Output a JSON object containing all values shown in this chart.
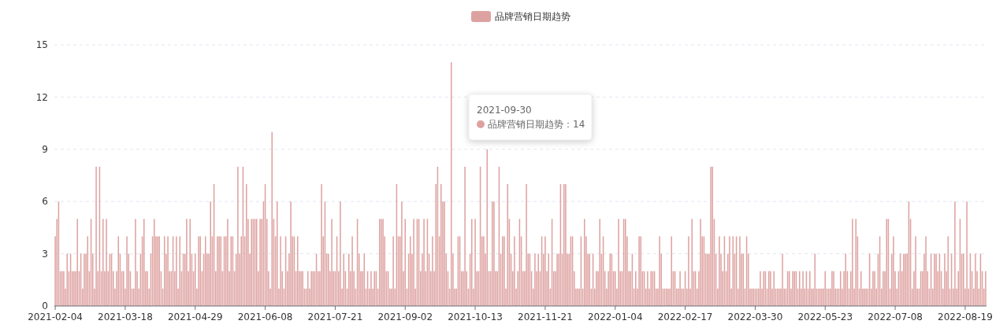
{
  "chart_data": {
    "type": "bar",
    "categories": [
      "2021-02-04",
      null,
      null,
      null,
      null,
      null,
      null,
      null,
      null,
      null,
      null,
      null,
      null,
      null,
      null,
      null,
      null,
      null,
      null,
      null,
      null,
      null,
      null,
      null,
      null,
      null,
      null,
      null,
      null,
      null,
      null,
      null,
      null,
      null,
      null,
      null,
      null,
      null,
      null,
      null,
      null,
      "2021-03-18",
      null,
      null,
      null,
      null,
      null,
      null,
      null,
      null,
      null,
      null,
      null,
      null,
      null,
      null,
      null,
      null,
      null,
      null,
      null,
      null,
      null,
      null,
      null,
      null,
      null,
      null,
      null,
      null,
      null,
      null,
      null,
      null,
      null,
      null,
      null,
      null,
      null,
      null,
      null,
      null,
      "2021-04-29",
      null,
      null,
      null,
      null,
      null,
      null,
      null,
      null,
      null,
      null,
      null,
      null,
      null,
      null,
      null,
      null,
      null,
      null,
      null,
      null,
      null,
      null,
      null,
      null,
      null,
      null,
      null,
      null,
      null,
      null,
      null,
      null,
      null,
      null,
      null,
      null,
      null,
      null,
      null,
      null,
      "2021-06-08",
      null,
      null,
      null,
      null,
      null,
      null,
      null,
      null,
      null,
      null,
      null,
      null,
      null,
      null,
      null,
      null,
      null,
      null,
      null,
      null,
      null,
      null,
      null,
      null,
      null,
      null,
      null,
      null,
      null,
      null,
      null,
      null,
      null,
      null,
      null,
      null,
      null,
      null,
      null,
      null,
      "2021-07-21",
      null,
      null,
      null,
      null,
      null,
      null,
      null,
      null,
      null,
      null,
      null,
      null,
      null,
      null,
      null,
      null,
      null,
      null,
      null,
      null,
      null,
      null,
      null,
      null,
      null,
      null,
      null,
      null,
      null,
      null,
      null,
      null,
      null,
      null,
      null,
      null,
      null,
      null,
      null,
      null,
      "2021-09-02",
      null,
      null,
      null,
      null,
      null,
      null,
      null,
      null,
      null,
      null,
      null,
      null,
      null,
      null,
      null,
      null,
      null,
      null,
      null,
      null,
      null,
      null,
      null,
      null,
      null,
      null,
      null,
      null,
      null,
      null,
      null,
      null,
      null,
      null,
      null,
      null,
      null,
      null,
      null,
      null,
      "2021-10-13",
      null,
      null,
      null,
      null,
      null,
      null,
      null,
      null,
      null,
      null,
      null,
      null,
      null,
      null,
      null,
      null,
      null,
      null,
      null,
      null,
      null,
      null,
      null,
      null,
      null,
      null,
      null,
      null,
      null,
      null,
      null,
      null,
      null,
      null,
      null,
      null,
      null,
      null,
      null,
      null,
      "2021-11-21",
      null,
      null,
      null,
      null,
      null,
      null,
      null,
      null,
      null,
      null,
      null,
      null,
      null,
      null,
      null,
      null,
      null,
      null,
      null,
      null,
      null,
      null,
      null,
      null,
      null,
      null,
      null,
      null,
      null,
      null,
      null,
      null,
      null,
      null,
      null,
      null,
      null,
      null,
      null,
      null,
      "2022-01-04",
      null,
      null,
      null,
      null,
      null,
      null,
      null,
      null,
      null,
      null,
      null,
      null,
      null,
      null,
      null,
      null,
      null,
      null,
      null,
      null,
      null,
      null,
      null,
      null,
      null,
      null,
      null,
      null,
      null,
      null,
      null,
      null,
      null,
      null,
      null,
      null,
      null,
      null,
      null,
      null,
      "2022-02-17",
      null,
      null,
      null,
      null,
      null,
      null,
      null,
      null,
      null,
      null,
      null,
      null,
      null,
      null,
      null,
      null,
      null,
      null,
      null,
      null,
      null,
      null,
      null,
      null,
      null,
      null,
      null,
      null,
      null,
      null,
      null,
      null,
      null,
      null,
      null,
      null,
      null,
      null,
      null,
      null,
      "2022-03-30",
      null,
      null,
      null,
      null,
      null,
      null,
      null,
      null,
      null,
      null,
      null,
      null,
      null,
      null,
      null,
      null,
      null,
      null,
      null,
      null,
      null,
      null,
      null,
      null,
      null,
      null,
      null,
      null,
      null,
      null,
      null,
      null,
      null,
      null,
      null,
      null,
      null,
      null,
      null,
      null,
      "2022-05-23",
      null,
      null,
      null,
      null,
      null,
      null,
      null,
      null,
      null,
      null,
      null,
      null,
      null,
      null,
      null,
      null,
      null,
      null,
      null,
      null,
      null,
      null,
      null,
      null,
      null,
      null,
      null,
      null,
      null,
      null,
      null,
      null,
      null,
      null,
      null,
      null,
      null,
      null,
      null,
      null,
      "2022-07-08",
      null,
      null,
      null,
      null,
      null,
      null,
      null,
      null,
      null,
      null,
      null,
      null,
      null,
      null,
      null,
      null,
      null,
      null,
      null,
      null,
      null,
      null,
      null,
      null,
      null,
      null,
      null,
      null,
      null,
      null,
      null,
      null,
      null,
      null,
      null,
      null,
      null,
      null,
      null,
      null,
      "2022-08-19",
      null,
      null,
      null,
      null,
      null,
      null,
      null,
      null,
      null,
      null,
      null,
      null
    ],
    "series": [
      {
        "name": "品牌营销日期趋势",
        "color": "#dda2a0",
        "values": [
          4,
          5,
          6,
          2,
          2,
          2,
          1,
          3,
          2,
          3,
          2,
          2,
          2,
          5,
          2,
          3,
          1,
          3,
          3,
          4,
          2,
          5,
          3,
          1,
          8,
          2,
          8,
          2,
          5,
          2,
          5,
          2,
          3,
          3,
          2,
          1,
          2,
          4,
          3,
          2,
          2,
          1,
          4,
          3,
          2,
          1,
          1,
          5,
          2,
          1,
          3,
          4,
          5,
          2,
          2,
          1,
          3,
          4,
          5,
          4,
          4,
          4,
          2,
          1,
          4,
          3,
          4,
          2,
          2,
          4,
          2,
          4,
          1,
          4,
          2,
          3,
          3,
          5,
          2,
          5,
          3,
          2,
          3,
          1,
          4,
          4,
          2,
          3,
          4,
          3,
          3,
          6,
          4,
          7,
          2,
          4,
          4,
          4,
          2,
          4,
          4,
          5,
          2,
          4,
          4,
          2,
          3,
          8,
          3,
          4,
          8,
          4,
          7,
          5,
          3,
          5,
          5,
          5,
          5,
          2,
          5,
          5,
          6,
          7,
          5,
          2,
          1,
          10,
          5,
          4,
          6,
          1,
          4,
          2,
          1,
          4,
          2,
          3,
          6,
          4,
          4,
          2,
          4,
          2,
          2,
          2,
          1,
          1,
          2,
          1,
          2,
          2,
          2,
          3,
          2,
          2,
          7,
          4,
          6,
          3,
          3,
          2,
          5,
          2,
          2,
          4,
          2,
          6,
          1,
          3,
          2,
          1,
          3,
          2,
          4,
          2,
          1,
          5,
          3,
          2,
          2,
          3,
          1,
          2,
          1,
          2,
          1,
          2,
          2,
          1,
          5,
          5,
          5,
          4,
          2,
          2,
          1,
          1,
          4,
          1,
          7,
          4,
          4,
          6,
          2,
          5,
          1,
          3,
          4,
          3,
          5,
          1,
          5,
          5,
          2,
          3,
          5,
          2,
          5,
          3,
          2,
          4,
          2,
          7,
          8,
          4,
          7,
          6,
          6,
          3,
          2,
          1,
          14,
          3,
          1,
          1,
          4,
          4,
          2,
          2,
          8,
          2,
          1,
          3,
          5,
          1,
          5,
          2,
          2,
          8,
          4,
          4,
          3,
          9,
          2,
          2,
          6,
          6,
          2,
          2,
          8,
          3,
          4,
          4,
          1,
          7,
          5,
          3,
          2,
          4,
          1,
          2,
          5,
          4,
          2,
          2,
          7,
          3,
          3,
          2,
          1,
          3,
          2,
          3,
          2,
          4,
          3,
          4,
          2,
          3,
          1,
          5,
          2,
          2,
          3,
          3,
          7,
          3,
          7,
          7,
          3,
          3,
          4,
          4,
          2,
          1,
          1,
          1,
          4,
          1,
          5,
          4,
          3,
          3,
          1,
          3,
          1,
          2,
          2,
          5,
          3,
          4,
          2,
          1,
          2,
          3,
          3,
          2,
          2,
          1,
          5,
          2,
          2,
          5,
          5,
          4,
          2,
          2,
          3,
          1,
          2,
          1,
          4,
          4,
          2,
          2,
          1,
          2,
          1,
          2,
          2,
          2,
          1,
          1,
          4,
          3,
          1,
          1,
          1,
          1,
          1,
          4,
          2,
          2,
          1,
          1,
          2,
          1,
          1,
          2,
          1,
          4,
          1,
          5,
          2,
          2,
          1,
          2,
          5,
          4,
          4,
          3,
          3,
          3,
          8,
          8,
          5,
          3,
          1,
          4,
          3,
          2,
          4,
          2,
          3,
          4,
          1,
          4,
          3,
          4,
          1,
          4,
          3,
          3,
          1,
          4,
          3,
          1,
          1,
          1,
          1,
          1,
          1,
          2,
          1,
          2,
          2,
          1,
          2,
          2,
          1,
          2,
          1,
          1,
          1,
          1,
          3,
          1,
          1,
          2,
          2,
          1,
          2,
          2,
          2,
          1,
          2,
          1,
          2,
          1,
          2,
          1,
          2,
          1,
          1,
          3,
          1,
          1,
          1,
          1,
          1,
          2,
          1,
          1,
          1,
          2,
          2,
          1,
          1,
          1,
          2,
          1,
          2,
          3,
          2,
          1,
          2,
          5,
          1,
          5,
          4,
          1,
          2,
          1,
          1,
          1,
          1,
          3,
          1,
          2,
          2,
          1,
          3,
          4,
          1,
          2,
          2,
          5,
          5,
          1,
          3,
          4,
          2,
          1,
          2,
          3,
          2,
          3,
          3,
          3,
          6,
          5,
          1,
          2,
          4,
          1,
          1,
          2,
          2,
          3,
          4,
          2,
          1,
          3,
          1,
          3,
          3,
          2,
          3,
          2,
          1,
          3,
          2,
          4,
          1,
          3,
          1,
          6,
          1,
          2,
          5,
          3,
          3,
          1,
          6,
          1,
          3,
          2,
          1,
          3,
          2,
          1,
          3,
          2,
          1,
          2
        ]
      }
    ],
    "ylim": [
      0,
      15
    ],
    "yticks": [
      0,
      3,
      6,
      9,
      12,
      15
    ],
    "grid": "y",
    "legend": "top",
    "annotations": [
      "2021-09-30",
      "品牌营销日期趋势：14"
    ]
  }
}
